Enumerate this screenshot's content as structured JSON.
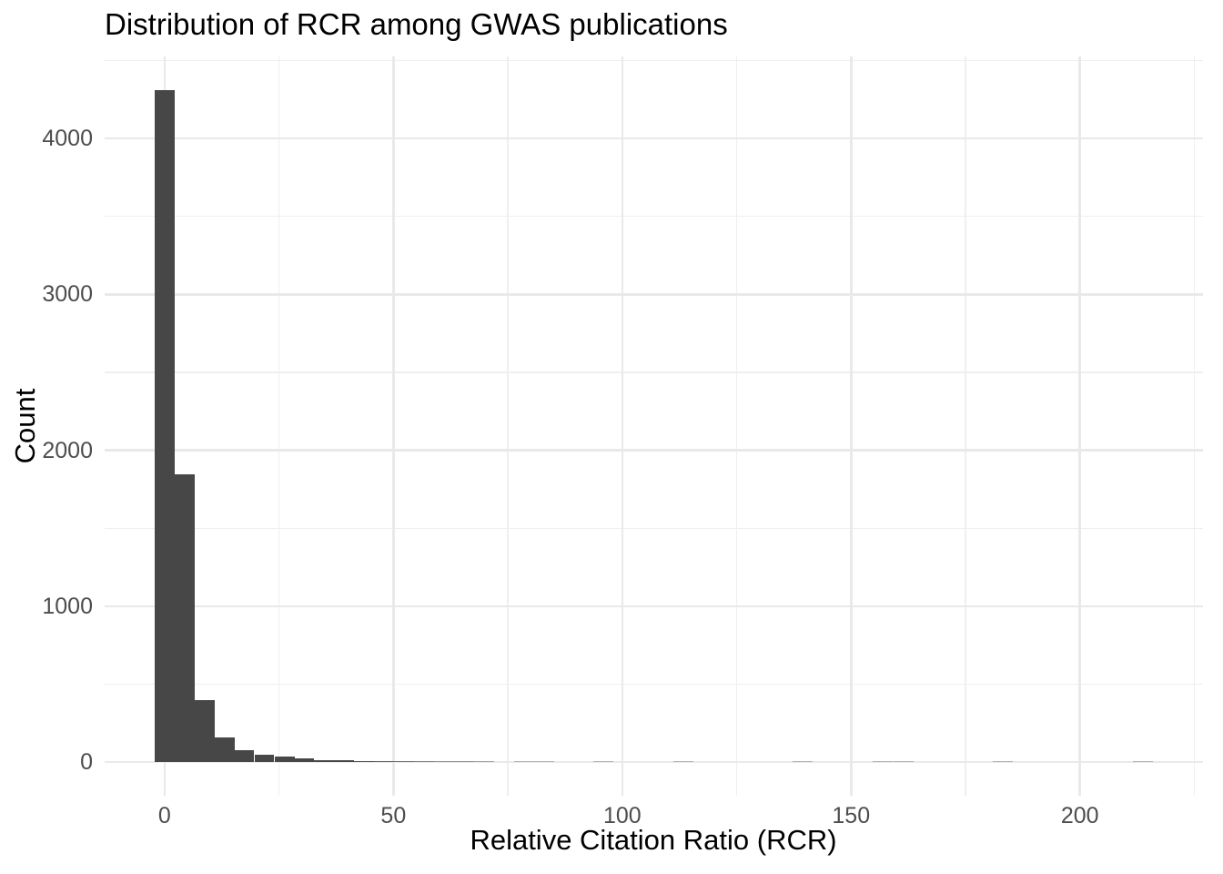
{
  "title": "Distribution of RCR among GWAS publications",
  "axes": {
    "x_title": "Relative Citation Ratio (RCR)",
    "y_title": "Count"
  },
  "chart_data": {
    "type": "bar",
    "subtype": "histogram",
    "title": "Distribution of RCR among GWAS publications",
    "xlabel": "Relative Citation Ratio (RCR)",
    "ylabel": "Count",
    "bin_width": 4.3609,
    "bin_centers": [
      0,
      4.4,
      8.7,
      13.1,
      17.4,
      21.8,
      26.2,
      30.5,
      34.9,
      39.2,
      43.6,
      48.0,
      52.3,
      56.7,
      61.1,
      65.4,
      69.8,
      74.1,
      78.5,
      82.9,
      87.2,
      91.6,
      95.9,
      100.3,
      104.7,
      109.0,
      113.4,
      117.7,
      122.1,
      126.5,
      130.8,
      135.2,
      139.5,
      143.9,
      148.3,
      152.6,
      157.0,
      161.4,
      165.7,
      170.1,
      174.4,
      178.8,
      183.2,
      187.5,
      191.9,
      196.2,
      200.6,
      205.0,
      209.3,
      213.7
    ],
    "values": [
      4310,
      1845,
      400,
      157,
      76,
      50,
      34,
      22,
      15,
      10,
      7,
      6,
      5,
      4,
      3,
      3,
      2,
      0,
      1,
      1,
      0,
      0,
      1,
      0,
      0,
      0,
      1,
      0,
      0,
      0,
      0,
      0,
      1,
      0,
      0,
      0,
      1,
      1,
      0,
      0,
      0,
      0,
      1,
      0,
      0,
      0,
      0,
      0,
      0,
      1
    ],
    "x_ticks": [
      0,
      50,
      100,
      150,
      200
    ],
    "y_ticks": [
      0,
      1000,
      2000,
      3000,
      4000
    ],
    "x_minor_gridlines": [
      25,
      75,
      125,
      175,
      225
    ],
    "y_minor_gridlines": [
      500,
      1500,
      2500,
      3500,
      4500
    ],
    "xlim": [
      -13.1,
      226.9
    ],
    "ylim": [
      -215.5,
      4525.5
    ],
    "grid": true,
    "legend_position": "none",
    "bar_color": "#474747",
    "grid_major_color": "#e9e9e9",
    "grid_minor_color": "#efefef",
    "background_color": "#ffffff",
    "tick_label_color": "#4d4d4d",
    "title_color": "#000000"
  }
}
